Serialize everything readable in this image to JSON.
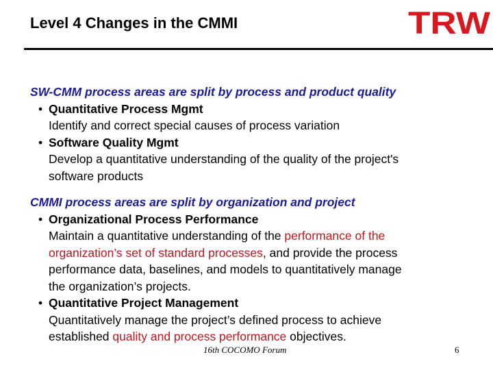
{
  "slide": {
    "title": "Level 4 Changes in the CMMI",
    "logo_text": "TRW",
    "footer": "16th COCOMO Forum",
    "page_number": "6",
    "colors": {
      "heading_blue": "#1a1a9e",
      "highlight_red": "#c0161c",
      "logo_red": "#d7191f"
    }
  },
  "sections": {
    "sw": {
      "heading": "SW-CMM process areas are split by process and product quality",
      "b1": {
        "marker": "•",
        "title": "Quantitative Process Mgmt",
        "text": "Identify and correct special causes of process variation"
      },
      "b2": {
        "marker": "•",
        "title": "Software Quality Mgmt",
        "line1": "Develop a quantitative understanding of the quality of the project's",
        "line2": "software products"
      }
    },
    "cmmi": {
      "heading": "CMMI process areas are split by organization and project",
      "b1": {
        "marker": "•",
        "title": "Organizational Process Performance",
        "l1_a": "Maintain a quantitative understanding of the ",
        "l1_red": "performance of the",
        "l2_red": "organization’s set of standard processes",
        "l2_b": ", and provide the process",
        "l3": "performance data, baselines, and models to quantitatively manage",
        "l4": "the organization’s projects."
      },
      "b2": {
        "marker": "•",
        "title": "Quantitative Project Management",
        "l1": "Quantitatively manage the project’s defined process to achieve",
        "l2_a": "established ",
        "l2_red": "quality and process performance",
        "l2_b": " objectives."
      }
    }
  }
}
